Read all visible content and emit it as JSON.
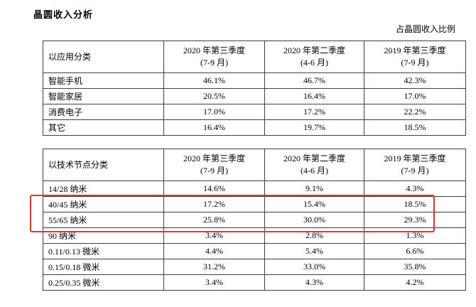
{
  "page": {
    "title": "晶圆收入分析",
    "note": "占晶圆收入比例"
  },
  "highlight": {
    "color": "#e8342a",
    "rows": [
      "40/45 纳米",
      "55/65 纳米"
    ]
  },
  "tables": [
    {
      "label_header": "以应用分类",
      "columns": [
        {
          "line1": "2020 年第三季度",
          "line2": "(7-9 月)"
        },
        {
          "line1": "2020 年第二季度",
          "line2": "(4-6 月)"
        },
        {
          "line1": "2019 年第三季度",
          "line2": "(7-9 月)"
        }
      ],
      "rows": [
        {
          "label": "智能手机",
          "values": [
            "46.1%",
            "46.7%",
            "42.3%"
          ]
        },
        {
          "label": "智能家居",
          "values": [
            "20.5%",
            "16.4%",
            "17.0%"
          ]
        },
        {
          "label": "消费电子",
          "values": [
            "17.0%",
            "17.2%",
            "22.2%"
          ]
        },
        {
          "label": "其它",
          "values": [
            "16.4%",
            "19.7%",
            "18.5%"
          ]
        }
      ]
    },
    {
      "label_header": "以技术节点分类",
      "columns": [
        {
          "line1": "2020 年第三季度",
          "line2": "(7-9 月)"
        },
        {
          "line1": "2020 年第二季度",
          "line2": "(4-6 月)"
        },
        {
          "line1": "2019 年第三季度",
          "line2": "(7-9 月)"
        }
      ],
      "rows": [
        {
          "label": "14/28 纳米",
          "values": [
            "14.6%",
            "9.1%",
            "4.3%"
          ]
        },
        {
          "label": "40/45 纳米",
          "values": [
            "17.2%",
            "15.4%",
            "18.5%"
          ],
          "highlighted": true
        },
        {
          "label": "55/65 纳米",
          "values": [
            "25.8%",
            "30.0%",
            "29.3%"
          ],
          "highlighted": true
        },
        {
          "label": "90 纳米",
          "values": [
            "3.4%",
            "2.8%",
            "1.3%"
          ]
        },
        {
          "label": "0.11/0.13 微米",
          "values": [
            "4.4%",
            "5.4%",
            "6.6%"
          ]
        },
        {
          "label": "0.15/0.18 微米",
          "values": [
            "31.2%",
            "33.0%",
            "35.8%"
          ]
        },
        {
          "label": "0.25/0.35 微米",
          "values": [
            "3.4%",
            "4.3%",
            "4.2%"
          ]
        }
      ]
    }
  ]
}
